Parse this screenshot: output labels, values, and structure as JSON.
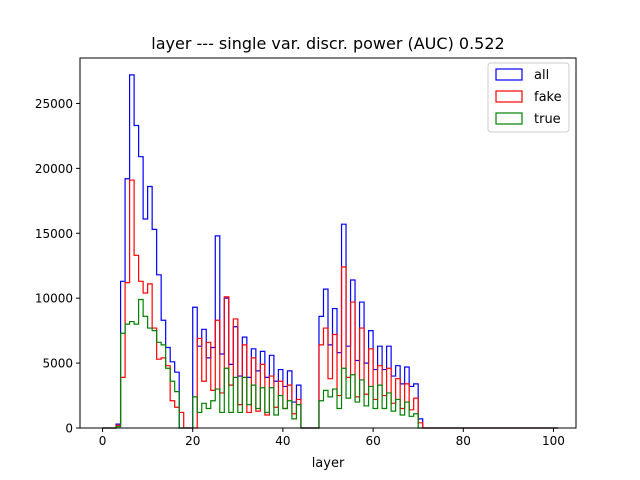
{
  "chart_data": {
    "type": "histogram",
    "title": "layer --- single var. discr. power (AUC) 0.522",
    "xlabel": "layer",
    "ylabel": "",
    "xlim": [
      -5,
      105
    ],
    "ylim": [
      0,
      28500
    ],
    "x_ticks": [
      0,
      20,
      40,
      60,
      80,
      100
    ],
    "y_ticks": [
      0,
      5000,
      10000,
      15000,
      20000,
      25000
    ],
    "bin_start": 0,
    "bin_width": 1,
    "grid": false,
    "legend_position": "top-right",
    "series": [
      {
        "name": "all",
        "color": "#0000ff",
        "values": [
          0,
          0,
          0,
          300,
          11300,
          19200,
          27200,
          23300,
          20900,
          16100,
          18600,
          15300,
          11800,
          8300,
          6200,
          5100,
          4300,
          0,
          0,
          0,
          9300,
          6300,
          7600,
          5400,
          6200,
          14800,
          5700,
          10000,
          4900,
          7800,
          4000,
          7000,
          3900,
          6100,
          4400,
          5900,
          3900,
          5600,
          3600,
          4500,
          3200,
          4400,
          2000,
          3300,
          0,
          0,
          0,
          0,
          8600,
          10700,
          6400,
          9200,
          5800,
          15700,
          6300,
          11400,
          5200,
          9700,
          5000,
          7500,
          4500,
          6300,
          4500,
          6300,
          4000,
          4800,
          3400,
          4700,
          3200,
          3400,
          700,
          0,
          0,
          0,
          0,
          0,
          0,
          0,
          0,
          0,
          0,
          0,
          0,
          0,
          0,
          0,
          0,
          0,
          0,
          0,
          0,
          0,
          0,
          0,
          0,
          0,
          0,
          0,
          0,
          0,
          0
        ]
      },
      {
        "name": "fake",
        "color": "#ff0000",
        "values": [
          0,
          0,
          0,
          200,
          3900,
          11200,
          19100,
          13300,
          11300,
          10400,
          11100,
          7700,
          5300,
          5400,
          4800,
          2100,
          1600,
          1200,
          0,
          0,
          0,
          6900,
          3600,
          6600,
          2900,
          8300,
          2700,
          10100,
          3300,
          8400,
          1800,
          6400,
          1200,
          5400,
          1300,
          4900,
          1000,
          4000,
          1600,
          3600,
          1500,
          3300,
          1100,
          2200,
          0,
          0,
          0,
          0,
          6400,
          7700,
          3800,
          7200,
          2500,
          12400,
          3900,
          9700,
          2400,
          7700,
          2600,
          6100,
          2200,
          4800,
          2500,
          4600,
          1900,
          3800,
          1500,
          3400,
          1400,
          2300,
          400,
          0,
          0,
          0,
          0,
          0,
          0,
          0,
          0,
          0,
          0,
          0,
          0,
          0,
          0,
          0,
          0,
          0,
          0,
          0,
          0,
          0,
          0,
          0,
          0,
          0,
          0,
          0,
          0,
          0,
          0
        ]
      },
      {
        "name": "true",
        "color": "#008000",
        "values": [
          0,
          0,
          0,
          100,
          7300,
          8000,
          8200,
          8000,
          9900,
          8600,
          7700,
          7500,
          6600,
          6400,
          4600,
          3600,
          2800,
          0,
          0,
          0,
          2400,
          1200,
          1900,
          1500,
          2100,
          3000,
          1200,
          4600,
          1200,
          3900,
          1200,
          3900,
          1800,
          3300,
          1500,
          3100,
          1200,
          3100,
          1000,
          2500,
          1500,
          2100,
          700,
          1800,
          0,
          0,
          0,
          0,
          2100,
          2900,
          2400,
          3000,
          1500,
          4600,
          2300,
          4100,
          2000,
          3700,
          1700,
          3200,
          1500,
          3300,
          1500,
          2700,
          1300,
          2200,
          1000,
          2000,
          900,
          1100,
          0,
          0,
          0,
          0,
          0,
          0,
          0,
          0,
          0,
          0,
          0,
          0,
          0,
          0,
          0,
          0,
          0,
          0,
          0,
          0,
          0,
          0,
          0,
          0,
          0,
          0,
          0,
          0,
          0,
          0,
          0
        ]
      }
    ]
  }
}
